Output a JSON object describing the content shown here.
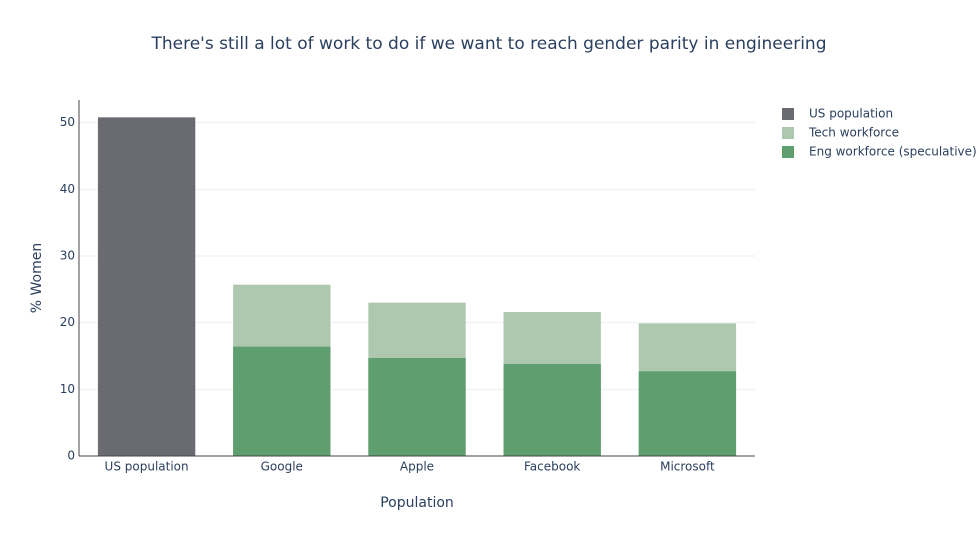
{
  "chart_data": {
    "type": "bar",
    "barmode": "overlay",
    "title": "There's still a lot of work to do if we want to reach gender parity in engineering",
    "x_label": "Population",
    "y_label": "% Women",
    "categories": [
      "US population",
      "Google",
      "Apple",
      "Facebook",
      "Microsoft"
    ],
    "series": [
      {
        "name": "US population",
        "color": "#696b70",
        "values": [
          50.8,
          null,
          null,
          null,
          null
        ]
      },
      {
        "name": "Tech workforce",
        "color": "#adc8af",
        "values": [
          null,
          25.7,
          23,
          21.6,
          19.9
        ]
      },
      {
        "name": "Eng workforce (speculative)",
        "color": "#5f9e6e",
        "values": [
          null,
          16.4,
          14.7,
          13.8,
          12.7
        ]
      }
    ],
    "ylim": [
      0,
      53.4
    ],
    "yticks": [
      0,
      10,
      20,
      30,
      40,
      50
    ],
    "grid": true,
    "legend": "right"
  }
}
